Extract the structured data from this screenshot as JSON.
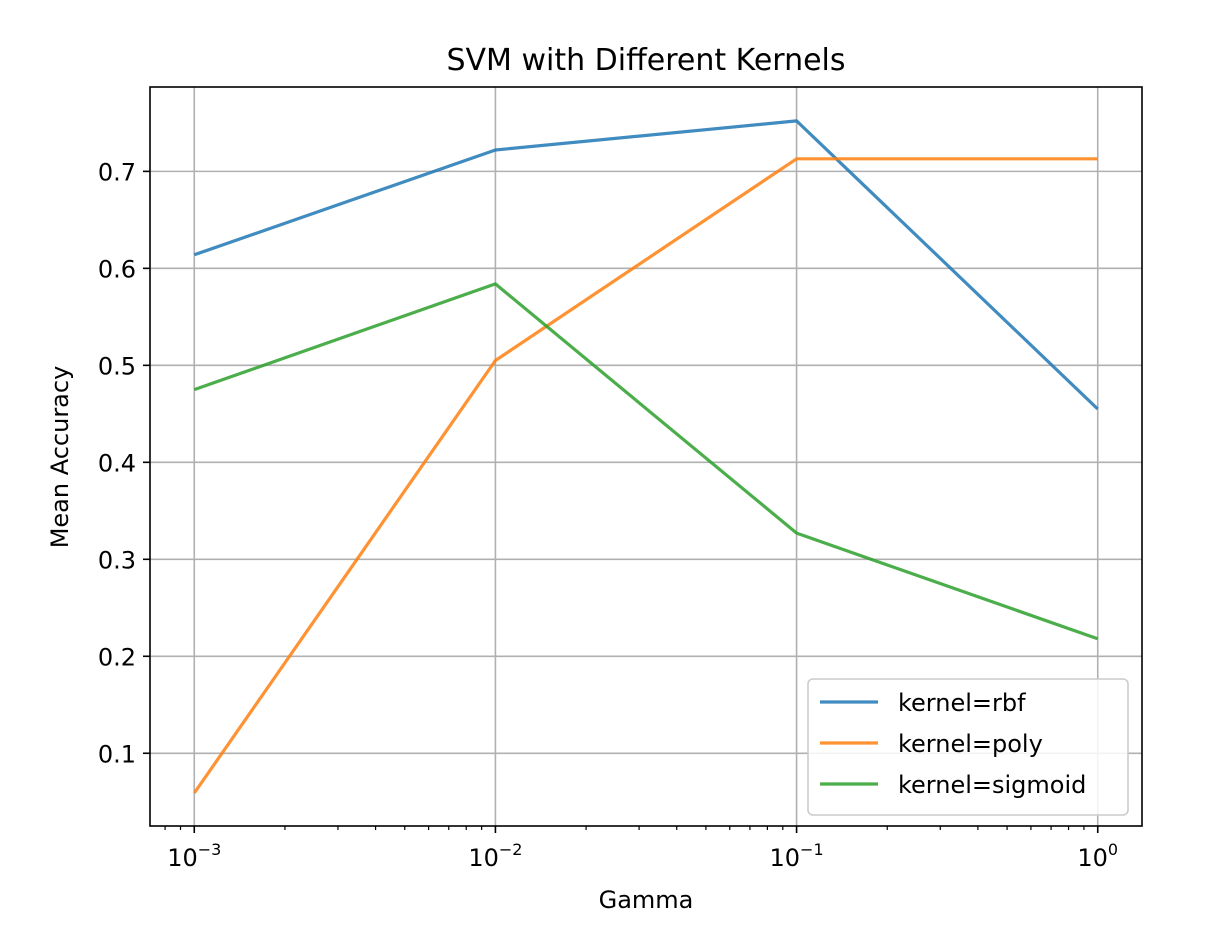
{
  "chart_data": {
    "type": "line",
    "title": "SVM with Different Kernels",
    "xlabel": "Gamma",
    "ylabel": "Mean Accuracy",
    "xscale": "log",
    "x": [
      0.001,
      0.01,
      0.1,
      1
    ],
    "x_tick_labels": [
      {
        "base": "10",
        "exp": "−3"
      },
      {
        "base": "10",
        "exp": "−2"
      },
      {
        "base": "10",
        "exp": "−1"
      },
      {
        "base": "10",
        "exp": "0"
      }
    ],
    "ylim": [
      0.025,
      0.787
    ],
    "y_ticks": [
      0.1,
      0.2,
      0.3,
      0.4,
      0.5,
      0.6,
      0.7
    ],
    "y_tick_labels": [
      "0.1",
      "0.2",
      "0.3",
      "0.4",
      "0.5",
      "0.6",
      "0.7"
    ],
    "grid": true,
    "legend_position": "bottom-right",
    "series": [
      {
        "name": "kernel=rbf",
        "color": "#1f77b4",
        "values": [
          0.614,
          0.722,
          0.752,
          0.455
        ]
      },
      {
        "name": "kernel=poly",
        "color": "#ff7f0e",
        "values": [
          0.059,
          0.505,
          0.713,
          0.713
        ]
      },
      {
        "name": "kernel=sigmoid",
        "color": "#2ca02c",
        "values": [
          0.475,
          0.584,
          0.327,
          0.218
        ]
      }
    ]
  }
}
